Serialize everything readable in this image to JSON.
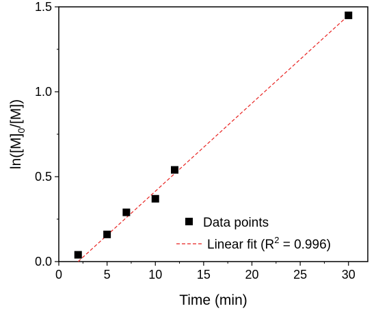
{
  "chart_data": {
    "type": "scatter",
    "title": "",
    "xlabel": "Time (min)",
    "ylabel": {
      "prefix": "ln([M]",
      "subscript": "0",
      "suffix": "/[M])"
    },
    "xlim": [
      0,
      32
    ],
    "ylim": [
      0,
      1.5
    ],
    "xticks": [
      0,
      5,
      10,
      15,
      20,
      25,
      30
    ],
    "yticks": [
      0.0,
      0.5,
      1.0,
      1.5
    ],
    "xtick_labels": [
      "0",
      "5",
      "10",
      "15",
      "20",
      "25",
      "30"
    ],
    "ytick_labels": [
      "0.0",
      "0.5",
      "1.0",
      "1.5"
    ],
    "grid": false,
    "legend_position": "bottom-right",
    "series": [
      {
        "name": "Data points",
        "kind": "scatter",
        "marker": "square",
        "color": "#000000",
        "x": [
          2,
          5,
          7,
          10,
          12,
          30
        ],
        "y": [
          0.04,
          0.16,
          0.29,
          0.37,
          0.54,
          1.45
        ]
      },
      {
        "name": {
          "prefix": "Linear fit (R",
          "superscript": "2",
          "suffix": " = 0.996)"
        },
        "kind": "line",
        "style": "dashed",
        "color": "#e8211f",
        "x": [
          2,
          30
        ],
        "y": [
          0.0,
          1.45
        ]
      }
    ]
  }
}
